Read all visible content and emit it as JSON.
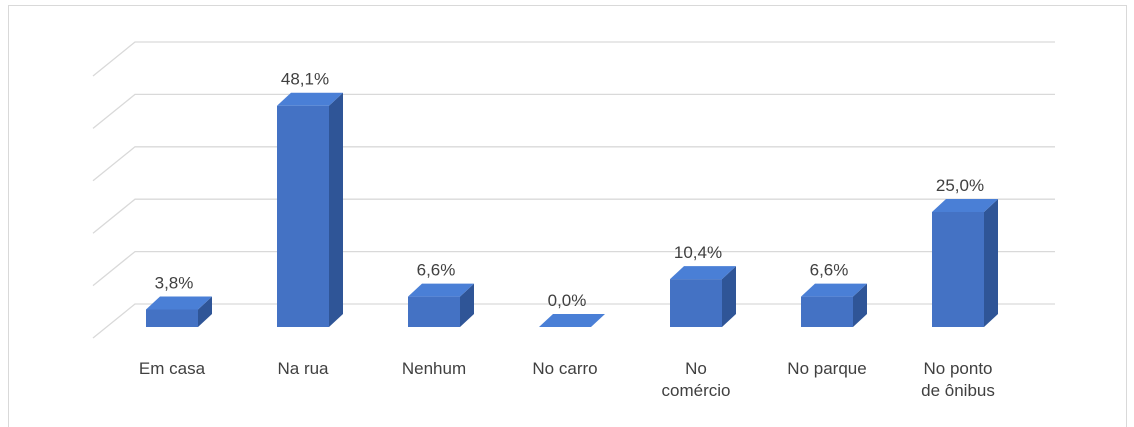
{
  "chart_data": {
    "type": "bar3d",
    "categories": [
      "Em casa",
      "Na rua",
      "Nenhum",
      "No carro",
      "No comércio",
      "No parque",
      "No ponto de ônibus"
    ],
    "values": [
      3.8,
      48.1,
      6.6,
      0.0,
      10.4,
      6.6,
      25.0
    ],
    "value_labels": [
      "3,8%",
      "48,1%",
      "6,6%",
      "0,0%",
      "10,4%",
      "6,6%",
      "25,0%"
    ],
    "color": "#4472c4",
    "ylim": [
      0,
      50
    ],
    "yticks": [
      0,
      10,
      20,
      30,
      40,
      50
    ],
    "grid": true
  }
}
